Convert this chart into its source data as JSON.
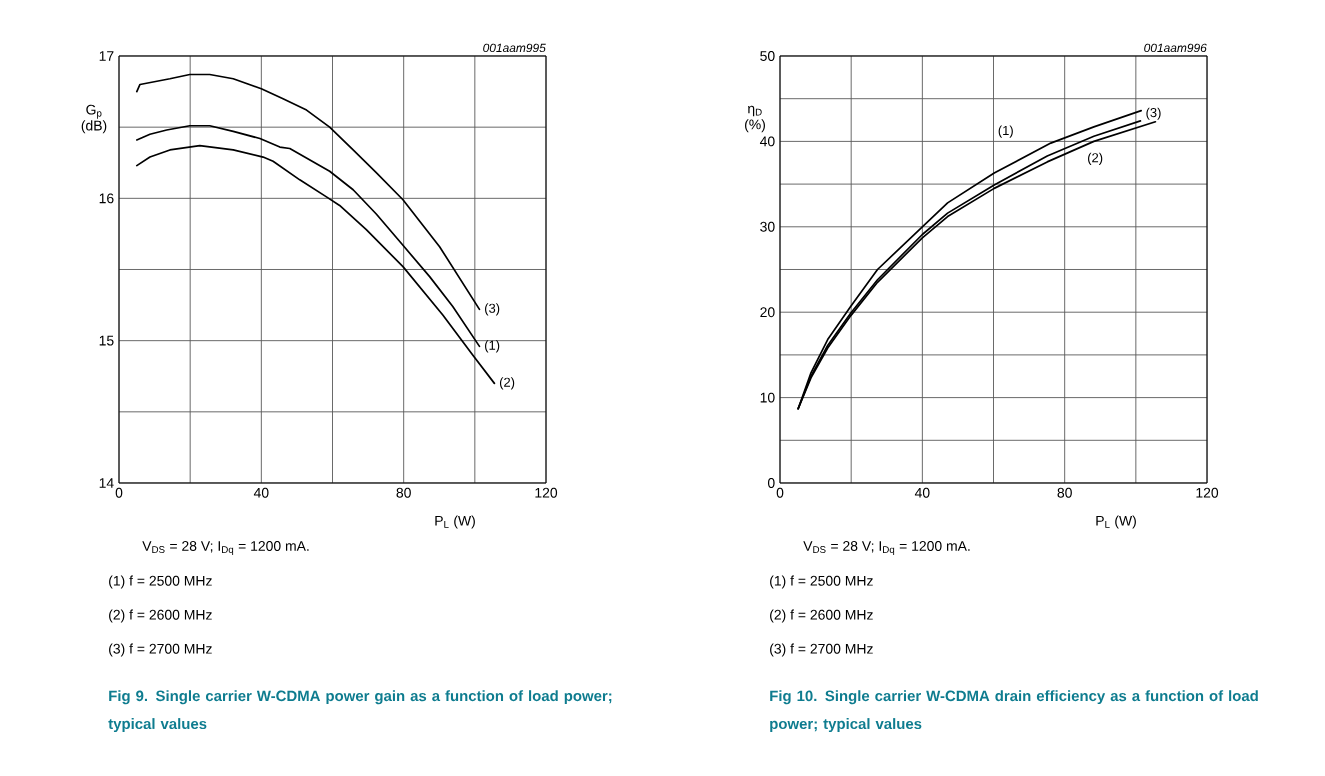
{
  "chart_data": [
    {
      "type": "line",
      "title": "Fig 9. Single carrier W-CDMA power gain as a function of load power; typical values",
      "xlabel": "P$_{L}$ (W)",
      "ylabel": "G$_{p}$ (dB)",
      "xlim": [
        0,
        120
      ],
      "ylim": [
        14,
        17
      ],
      "xticks": [
        0,
        {
          "value": 20,
          "label": null
        },
        40,
        {
          "value": 60,
          "label": null
        },
        80,
        {
          "value": 100,
          "label": null
        },
        120
      ],
      "yticks": [
        14,
        {
          "value": 14.5,
          "label": null
        },
        15,
        {
          "value": 15.5,
          "label": null
        },
        16,
        {
          "value": 16.5,
          "label": null
        },
        17
      ],
      "grid": true,
      "series": [
        {
          "name": "(1)",
          "color": "#000000",
          "x": [
            5,
            8.7,
            13.4,
            19.9,
            25.5,
            32.1,
            39.6,
            45.2,
            48,
            59.2,
            65.8,
            72.3,
            79.8,
            87.3,
            93.8,
            101.3
          ],
          "values": [
            16.41,
            16.45,
            16.48,
            16.51,
            16.51,
            16.47,
            16.42,
            16.36,
            16.35,
            16.19,
            16.06,
            15.89,
            15.67,
            15.45,
            15.24,
            14.96
          ]
        },
        {
          "name": "(2)",
          "color": "#000000",
          "x": [
            5,
            8.7,
            14.3,
            22.7,
            32.1,
            40.5,
            43.3,
            50.8,
            58.3,
            62,
            69.5,
            79.8,
            91,
            99.4,
            105.5
          ],
          "values": [
            16.23,
            16.29,
            16.34,
            16.37,
            16.34,
            16.29,
            16.26,
            16.13,
            16.01,
            15.95,
            15.78,
            15.52,
            15.18,
            14.9,
            14.7
          ]
        },
        {
          "name": "(3)",
          "color": "#000000",
          "x": [
            5,
            5.9,
            14.3,
            19.9,
            25.5,
            32.1,
            40,
            46.1,
            52.7,
            59.2,
            65.8,
            72.3,
            79.8,
            90.1,
            101.3
          ],
          "values": [
            16.75,
            16.8,
            16.84,
            16.87,
            16.87,
            16.84,
            16.77,
            16.7,
            16.62,
            16.5,
            16.34,
            16.18,
            15.99,
            15.66,
            15.22
          ]
        }
      ],
      "annotations": [
        "001aam995",
        "V$_{DS}$ = 28 V; I$_{Dq}$ = 1200 mA.",
        "(1) f = 2500 MHz",
        "(2) f = 2600 MHz",
        "(3) f = 2700 MHz"
      ]
    },
    {
      "type": "line",
      "title": "Fig 10. Single carrier W-CDMA drain efficiency as a function of load power; typical values",
      "xlabel": "P$_{L}$ (W)",
      "ylabel": "η$_{D}$ (%)",
      "xlim": [
        0,
        120
      ],
      "ylim": [
        0,
        50
      ],
      "xticks": [
        0,
        {
          "value": 20,
          "label": null
        },
        40,
        {
          "value": 60,
          "label": null
        },
        80,
        {
          "value": 100,
          "label": null
        },
        120
      ],
      "yticks": [
        0,
        {
          "value": 5,
          "label": null
        },
        10,
        {
          "value": 15,
          "label": null
        },
        20,
        {
          "value": 25,
          "label": null
        },
        30,
        {
          "value": 35,
          "label": null
        },
        40,
        {
          "value": 45,
          "label": null
        },
        50
      ],
      "grid": true,
      "series": [
        {
          "name": "(1)",
          "color": "#000000",
          "x": [
            5.1,
            8.7,
            13.4,
            19.9,
            27.4,
            40,
            47.1,
            60.2,
            76.1,
            88.2,
            101.5
          ],
          "values": [
            8.7,
            12.9,
            16.8,
            20.7,
            25.0,
            30.0,
            32.8,
            36.3,
            39.8,
            41.7,
            43.6
          ]
        },
        {
          "name": "(2)",
          "color": "#000000",
          "x": [
            5.1,
            8.7,
            13.4,
            19.9,
            27.4,
            40,
            47.1,
            60.2,
            75.1,
            88.2,
            105.5
          ],
          "values": [
            8.7,
            12.3,
            15.8,
            19.6,
            23.5,
            28.7,
            31.2,
            34.5,
            37.6,
            40.0,
            42.3
          ]
        },
        {
          "name": "(3)",
          "color": "#000000",
          "x": [
            5.1,
            8.7,
            13.4,
            19.9,
            27.4,
            40,
            47.1,
            60.2,
            75.1,
            88.2,
            101.3
          ],
          "values": [
            8.7,
            12.5,
            16.1,
            19.9,
            23.8,
            29.1,
            31.6,
            34.9,
            38.3,
            40.6,
            42.4
          ]
        }
      ],
      "annotations": [
        "001aam996",
        "V$_{DS}$ = 28 V; I$_{Dq}$ = 1200 mA.",
        "(1) f = 2500 MHz",
        "(2) f = 2600 MHz",
        "(3) f = 2700 MHz"
      ]
    }
  ]
}
